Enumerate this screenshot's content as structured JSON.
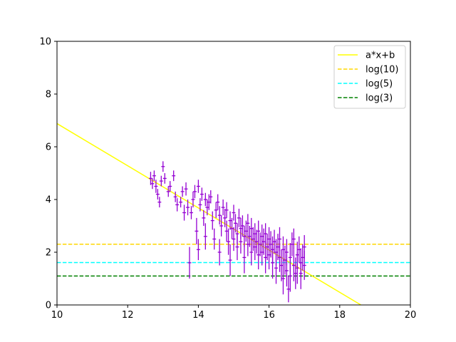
{
  "chart_data": {
    "type": "scatter",
    "title": "",
    "xlabel": "",
    "ylabel": "",
    "xlim": [
      10,
      20
    ],
    "ylim": [
      0,
      10
    ],
    "x_ticks": [
      10,
      12,
      14,
      16,
      18,
      20
    ],
    "y_ticks": [
      0,
      2,
      4,
      6,
      8,
      10
    ],
    "grid": false,
    "legend_position": "top-right",
    "fit_line": {
      "name": "a*x+b",
      "color": "#ffff00",
      "slope": -0.8,
      "intercept": 14.88,
      "x_range": [
        10,
        18.6
      ]
    },
    "reference_lines": [
      {
        "name": "log(10)",
        "y": 2.303,
        "color": "#ffd700",
        "style": "dashed"
      },
      {
        "name": "log(5)",
        "y": 1.609,
        "color": "#00ffff",
        "style": "dashed"
      },
      {
        "name": "log(3)",
        "y": 1.099,
        "color": "#008000",
        "style": "dashed"
      }
    ],
    "scatter_series": {
      "color": "#9400d3",
      "marker": "errorbar",
      "points": [
        [
          12.65,
          4.8,
          0.25,
          0.05
        ],
        [
          12.7,
          4.6,
          0.2,
          0.05
        ],
        [
          12.75,
          4.9,
          0.2,
          0.05
        ],
        [
          12.8,
          4.5,
          0.25,
          0.05
        ],
        [
          12.85,
          4.2,
          0.2,
          0.05
        ],
        [
          12.9,
          3.9,
          0.2,
          0.05
        ],
        [
          12.95,
          4.7,
          0.2,
          0.05
        ],
        [
          13.0,
          5.25,
          0.2,
          0.05
        ],
        [
          13.05,
          4.8,
          0.2,
          0.05
        ],
        [
          13.15,
          4.3,
          0.2,
          0.05
        ],
        [
          13.2,
          4.5,
          0.2,
          0.05
        ],
        [
          13.3,
          4.9,
          0.2,
          0.05
        ],
        [
          13.35,
          4.1,
          0.2,
          0.05
        ],
        [
          13.4,
          3.8,
          0.25,
          0.05
        ],
        [
          13.5,
          3.9,
          0.2,
          0.05
        ],
        [
          13.55,
          4.3,
          0.2,
          0.05
        ],
        [
          13.6,
          3.5,
          0.3,
          0.05
        ],
        [
          13.65,
          4.4,
          0.25,
          0.05
        ],
        [
          13.7,
          3.7,
          0.3,
          0.05
        ],
        [
          13.75,
          1.6,
          0.6,
          0.05
        ],
        [
          13.8,
          3.5,
          0.25,
          0.05
        ],
        [
          13.85,
          4.0,
          0.3,
          0.05
        ],
        [
          13.9,
          4.3,
          0.25,
          0.05
        ],
        [
          13.95,
          2.8,
          0.5,
          0.05
        ],
        [
          14.0,
          4.5,
          0.25,
          0.05
        ],
        [
          14.0,
          2.1,
          0.4,
          0.05
        ],
        [
          14.05,
          3.8,
          0.25,
          0.05
        ],
        [
          14.1,
          4.2,
          0.25,
          0.05
        ],
        [
          14.15,
          3.3,
          0.3,
          0.05
        ],
        [
          14.2,
          2.6,
          0.5,
          0.05
        ],
        [
          14.2,
          4.0,
          0.25,
          0.05
        ],
        [
          14.25,
          3.7,
          0.3,
          0.05
        ],
        [
          14.3,
          3.9,
          0.3,
          0.05
        ],
        [
          14.35,
          4.1,
          0.25,
          0.05
        ],
        [
          14.4,
          3.2,
          0.35,
          0.05
        ],
        [
          14.45,
          2.5,
          0.4,
          0.05
        ],
        [
          14.5,
          3.6,
          0.3,
          0.05
        ],
        [
          14.55,
          3.9,
          0.3,
          0.05
        ],
        [
          14.6,
          3.4,
          0.35,
          0.05
        ],
        [
          14.6,
          2.0,
          0.5,
          0.05
        ],
        [
          14.65,
          3.0,
          0.4,
          0.05
        ],
        [
          14.7,
          3.7,
          0.3,
          0.05
        ],
        [
          14.75,
          3.3,
          0.35,
          0.05
        ],
        [
          14.8,
          2.8,
          0.4,
          0.05
        ],
        [
          14.8,
          3.6,
          0.3,
          0.05
        ],
        [
          14.85,
          2.4,
          0.5,
          0.05
        ],
        [
          14.9,
          3.2,
          0.35,
          0.05
        ],
        [
          14.9,
          1.7,
          0.6,
          0.05
        ],
        [
          14.95,
          2.9,
          0.4,
          0.05
        ],
        [
          15.0,
          3.5,
          0.3,
          0.05
        ],
        [
          15.0,
          2.5,
          0.45,
          0.05
        ],
        [
          15.05,
          3.1,
          0.35,
          0.05
        ],
        [
          15.1,
          2.7,
          0.4,
          0.05
        ],
        [
          15.1,
          2.2,
          0.5,
          0.05
        ],
        [
          15.15,
          3.3,
          0.35,
          0.05
        ],
        [
          15.2,
          2.9,
          0.4,
          0.05
        ],
        [
          15.2,
          2.4,
          0.45,
          0.05
        ],
        [
          15.25,
          3.0,
          0.4,
          0.05
        ],
        [
          15.3,
          2.6,
          0.4,
          0.05
        ],
        [
          15.3,
          1.8,
          0.6,
          0.05
        ],
        [
          15.35,
          2.8,
          0.4,
          0.05
        ],
        [
          15.4,
          3.1,
          0.35,
          0.05
        ],
        [
          15.4,
          2.3,
          0.45,
          0.05
        ],
        [
          15.45,
          2.6,
          0.4,
          0.05
        ],
        [
          15.5,
          2.9,
          0.4,
          0.05
        ],
        [
          15.5,
          2.0,
          0.5,
          0.05
        ],
        [
          15.55,
          2.5,
          0.45,
          0.05
        ],
        [
          15.6,
          2.7,
          0.4,
          0.05
        ],
        [
          15.6,
          2.2,
          0.5,
          0.05
        ],
        [
          15.65,
          2.4,
          0.45,
          0.05
        ],
        [
          15.7,
          2.8,
          0.4,
          0.05
        ],
        [
          15.7,
          1.9,
          0.55,
          0.05
        ],
        [
          15.75,
          2.3,
          0.45,
          0.05
        ],
        [
          15.8,
          2.6,
          0.45,
          0.05
        ],
        [
          15.8,
          2.0,
          0.5,
          0.05
        ],
        [
          15.85,
          2.4,
          0.5,
          0.05
        ],
        [
          15.9,
          2.7,
          0.4,
          0.05
        ],
        [
          15.9,
          1.8,
          0.6,
          0.05
        ],
        [
          15.95,
          2.2,
          0.5,
          0.05
        ],
        [
          16.0,
          2.5,
          0.45,
          0.05
        ],
        [
          16.0,
          1.9,
          0.55,
          0.05
        ],
        [
          16.05,
          2.3,
          0.5,
          0.05
        ],
        [
          16.1,
          2.1,
          0.5,
          0.05
        ],
        [
          16.1,
          1.6,
          0.6,
          0.05
        ],
        [
          16.15,
          2.4,
          0.45,
          0.05
        ],
        [
          16.2,
          2.0,
          0.5,
          0.05
        ],
        [
          16.2,
          1.4,
          0.6,
          0.05
        ],
        [
          16.25,
          2.2,
          0.5,
          0.05
        ],
        [
          16.3,
          1.8,
          0.55,
          0.05
        ],
        [
          16.3,
          2.5,
          0.45,
          0.05
        ],
        [
          16.35,
          1.5,
          0.6,
          0.05
        ],
        [
          16.4,
          2.1,
          0.5,
          0.05
        ],
        [
          16.4,
          1.0,
          0.6,
          0.05
        ],
        [
          16.45,
          1.7,
          0.55,
          0.05
        ],
        [
          16.5,
          2.0,
          0.5,
          0.05
        ],
        [
          16.5,
          1.3,
          0.6,
          0.05
        ],
        [
          16.55,
          0.6,
          0.5,
          0.05
        ],
        [
          16.6,
          1.8,
          0.55,
          0.05
        ],
        [
          16.6,
          1.1,
          0.6,
          0.05
        ],
        [
          16.65,
          2.3,
          0.45,
          0.05
        ],
        [
          16.7,
          1.5,
          0.6,
          0.05
        ],
        [
          16.7,
          2.5,
          0.4,
          0.05
        ],
        [
          16.75,
          1.2,
          0.6,
          0.05
        ],
        [
          16.8,
          1.9,
          0.5,
          0.05
        ],
        [
          16.8,
          1.4,
          0.6,
          0.05
        ],
        [
          16.85,
          2.1,
          0.5,
          0.05
        ],
        [
          16.9,
          1.6,
          0.55,
          0.05
        ],
        [
          16.9,
          1.2,
          0.6,
          0.05
        ],
        [
          16.95,
          1.8,
          0.5,
          0.05
        ],
        [
          17.0,
          1.5,
          0.55,
          0.05
        ],
        [
          17.0,
          2.2,
          0.45,
          0.05
        ]
      ]
    }
  }
}
